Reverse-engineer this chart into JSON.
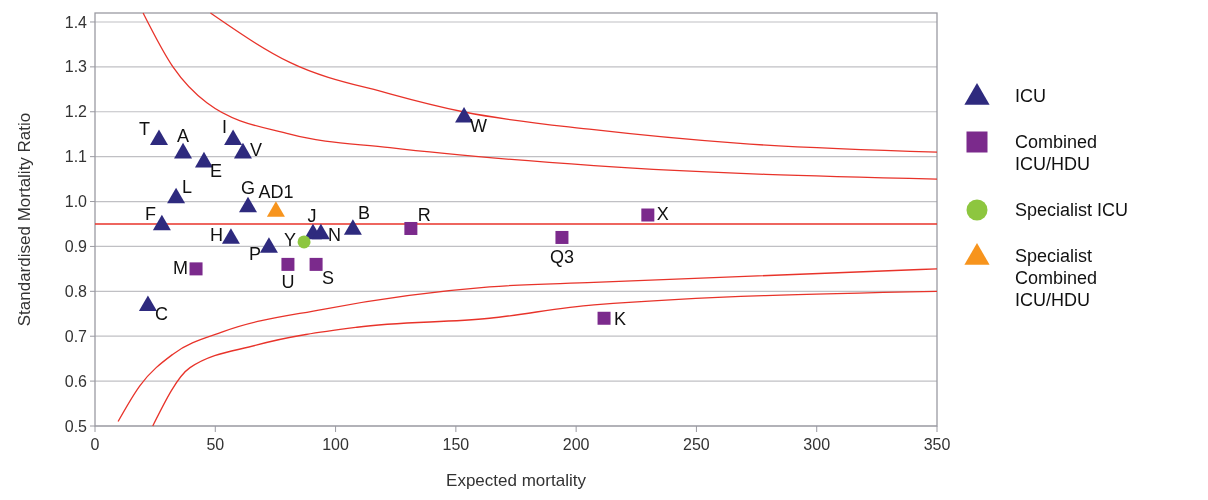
{
  "chart_data": {
    "type": "scatter",
    "xlabel": "Expected mortality",
    "ylabel": "Standardised Mortality Ratio",
    "xlim": [
      0,
      350
    ],
    "xticks": [
      0,
      50,
      100,
      150,
      200,
      250,
      300,
      350
    ],
    "ylim": [
      0.5,
      1.42
    ],
    "yticks": [
      {
        "value": 0.5,
        "label": "0.5"
      },
      {
        "value": 0.6,
        "label": "0.6"
      },
      {
        "value": 0.7,
        "label": "0.7"
      },
      {
        "value": 0.8,
        "label": "0.8"
      },
      {
        "value": 0.9,
        "label": "0.9"
      },
      {
        "value": 1.0,
        "label": "1.0"
      },
      {
        "value": 1.1,
        "label": "1.1"
      },
      {
        "value": 1.2,
        "label": "1.2"
      },
      {
        "value": 1.3,
        "label": "1.3"
      },
      {
        "value": 1.4,
        "label": "1.4"
      }
    ],
    "grid": "y",
    "legend": "right",
    "ref_lines": [
      {
        "axis": "y",
        "value": 0.95,
        "color": "#e8332a"
      }
    ],
    "series": [
      {
        "name": "ICU",
        "color": "#2e2a7e",
        "marker": "triangle",
        "x": [
          26.6,
          36.6,
          57.4,
          61.5,
          45.3,
          33.7,
          63.6,
          27.8,
          56.5,
          90.6,
          93.9,
          107.2,
          72.3,
          22,
          153.4
        ],
        "values": [
          1.14,
          1.11,
          1.14,
          1.11,
          1.09,
          1.01,
          0.99,
          0.95,
          0.92,
          0.93,
          0.93,
          0.94,
          0.9,
          0.77,
          1.19
        ]
      },
      {
        "name": "Combined ICU/HDU",
        "color": "#7b2a8c",
        "marker": "square",
        "x": [
          80.2,
          91.9,
          42,
          131.3,
          194.1,
          229.8,
          211.6
        ],
        "values": [
          0.86,
          0.86,
          0.85,
          0.94,
          0.92,
          0.97,
          0.74
        ]
      },
      {
        "name": "Specialist ICU",
        "color": "#8dc63f",
        "marker": "circle",
        "x": [
          86.9
        ],
        "values": [
          0.91
        ]
      },
      {
        "name": "Specialist Combined ICU/HDU",
        "color": "#f7941d",
        "marker": "triangle",
        "x": [
          75.2
        ],
        "values": [
          0.98
        ]
      },
      {
        "type": "line",
        "color": "#e8332a",
        "marker": "none",
        "x": [
          48,
          81,
          122.6,
          153,
          207.4,
          266.8,
          350
        ],
        "values": [
          1.42,
          1.31,
          1.24,
          1.2,
          1.16,
          1.13,
          1.11
        ]
      },
      {
        "type": "line",
        "color": "#e8332a",
        "marker": "none",
        "x": [
          20,
          32.4,
          46.5,
          81,
          122.6,
          207.4,
          350
        ],
        "values": [
          1.42,
          1.3,
          1.22,
          1.15,
          1.12,
          1.08,
          1.05
        ]
      },
      {
        "type": "line",
        "color": "#e8332a",
        "marker": "none",
        "x": [
          9.6,
          18.7,
          32.4,
          53.3,
          94.8,
          164,
          207.4,
          350
        ],
        "values": [
          0.51,
          0.59,
          0.66,
          0.71,
          0.76,
          0.81,
          0.82,
          0.85
        ]
      },
      {
        "type": "line",
        "color": "#e8332a",
        "marker": "none",
        "x": [
          24,
          39.5,
          67,
          108.9,
          164,
          207.4,
          350
        ],
        "values": [
          0.5,
          0.63,
          0.68,
          0.72,
          0.74,
          0.77,
          0.8
        ]
      }
    ],
    "annotations": [
      {
        "text": "T",
        "x": 26.6,
        "y": 1.14
      },
      {
        "text": "A",
        "x": 36.6,
        "y": 1.11
      },
      {
        "text": "I",
        "x": 57.4,
        "y": 1.14
      },
      {
        "text": "V",
        "x": 61.5,
        "y": 1.11
      },
      {
        "text": "E",
        "x": 45.3,
        "y": 1.09
      },
      {
        "text": "L",
        "x": 33.7,
        "y": 1.01
      },
      {
        "text": "G",
        "x": 63.6,
        "y": 0.99
      },
      {
        "text": "F",
        "x": 27.8,
        "y": 0.95
      },
      {
        "text": "H",
        "x": 56.5,
        "y": 0.92
      },
      {
        "text": "J",
        "x": 90.6,
        "y": 0.93
      },
      {
        "text": "N",
        "x": 93.9,
        "y": 0.93
      },
      {
        "text": "B",
        "x": 107.2,
        "y": 0.94
      },
      {
        "text": "P",
        "x": 72.3,
        "y": 0.9
      },
      {
        "text": "C",
        "x": 22,
        "y": 0.77
      },
      {
        "text": "W",
        "x": 153.4,
        "y": 1.19
      },
      {
        "text": "U",
        "x": 80.2,
        "y": 0.86
      },
      {
        "text": "S",
        "x": 91.9,
        "y": 0.86
      },
      {
        "text": "M",
        "x": 42,
        "y": 0.85
      },
      {
        "text": "R",
        "x": 131.3,
        "y": 0.94
      },
      {
        "text": "Q3",
        "x": 194.1,
        "y": 0.92
      },
      {
        "text": "X",
        "x": 229.8,
        "y": 0.97
      },
      {
        "text": "K",
        "x": 211.6,
        "y": 0.74
      },
      {
        "text": "Y",
        "x": 86.9,
        "y": 0.91
      },
      {
        "text": "AD1",
        "x": 75.2,
        "y": 0.98
      }
    ]
  }
}
